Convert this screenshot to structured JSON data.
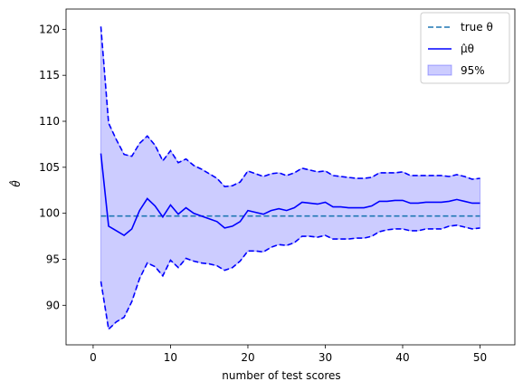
{
  "chart_data": {
    "type": "line",
    "xlabel": "number of test scores",
    "ylabel": "θ̂",
    "xlim": [
      -3.5,
      54.5
    ],
    "ylim": [
      85.7,
      122.2
    ],
    "xticks": [
      0,
      10,
      20,
      30,
      40,
      50
    ],
    "yticks": [
      90,
      95,
      100,
      105,
      110,
      115,
      120
    ],
    "grid": false,
    "legend_position": "top-right",
    "true_theta": {
      "name": "true θ",
      "value": 99.7,
      "x_range": [
        1,
        50
      ],
      "color": "#1f77b4"
    },
    "x": [
      1,
      2,
      3,
      4,
      5,
      6,
      7,
      8,
      9,
      10,
      11,
      12,
      13,
      14,
      15,
      16,
      17,
      18,
      19,
      20,
      21,
      22,
      23,
      24,
      25,
      26,
      27,
      28,
      29,
      30,
      31,
      32,
      33,
      34,
      35,
      36,
      37,
      38,
      39,
      40,
      41,
      42,
      43,
      44,
      45,
      46,
      47,
      48,
      49,
      50
    ],
    "series": [
      {
        "name": "μ̂θ",
        "color": "#0000ff",
        "values": [
          106.5,
          98.6,
          98.1,
          97.6,
          98.3,
          100.3,
          101.6,
          100.8,
          99.6,
          100.9,
          99.9,
          100.6,
          100.0,
          99.7,
          99.4,
          99.1,
          98.4,
          98.6,
          99.1,
          100.3,
          100.1,
          99.9,
          100.3,
          100.5,
          100.3,
          100.6,
          101.2,
          101.1,
          101.0,
          101.2,
          100.7,
          100.7,
          100.6,
          100.6,
          100.6,
          100.8,
          101.3,
          101.3,
          101.4,
          101.4,
          101.1,
          101.1,
          101.2,
          101.2,
          101.2,
          101.3,
          101.5,
          101.3,
          101.1,
          101.1
        ]
      }
    ],
    "interval": {
      "name": "95%",
      "fill": "#0000ff",
      "opacity": 0.2,
      "upper": [
        120.3,
        109.8,
        108.0,
        106.4,
        106.2,
        107.6,
        108.4,
        107.4,
        105.7,
        106.8,
        105.5,
        105.9,
        105.2,
        104.8,
        104.3,
        103.8,
        102.9,
        103.0,
        103.4,
        104.6,
        104.3,
        104.0,
        104.3,
        104.4,
        104.1,
        104.4,
        104.9,
        104.7,
        104.5,
        104.6,
        104.1,
        104.0,
        103.9,
        103.8,
        103.8,
        103.9,
        104.4,
        104.4,
        104.4,
        104.5,
        104.1,
        104.1,
        104.1,
        104.1,
        104.1,
        104.0,
        104.2,
        104.0,
        103.7,
        103.8
      ],
      "lower": [
        92.6,
        87.4,
        88.2,
        88.7,
        90.4,
        92.9,
        94.6,
        94.2,
        93.2,
        94.9,
        94.1,
        95.1,
        94.8,
        94.6,
        94.5,
        94.3,
        93.8,
        94.1,
        94.8,
        95.9,
        95.9,
        95.8,
        96.3,
        96.6,
        96.5,
        96.8,
        97.5,
        97.5,
        97.4,
        97.6,
        97.2,
        97.2,
        97.2,
        97.3,
        97.3,
        97.5,
        98.0,
        98.2,
        98.3,
        98.3,
        98.1,
        98.1,
        98.3,
        98.3,
        98.3,
        98.6,
        98.7,
        98.5,
        98.3,
        98.4
      ]
    },
    "legend": [
      {
        "label": "true θ",
        "style": "dashed",
        "color": "#1f77b4"
      },
      {
        "label": "μ̂θ",
        "style": "solid",
        "color": "#0000ff"
      },
      {
        "label": "95%",
        "style": "fill",
        "color": "#0000ff"
      }
    ]
  }
}
